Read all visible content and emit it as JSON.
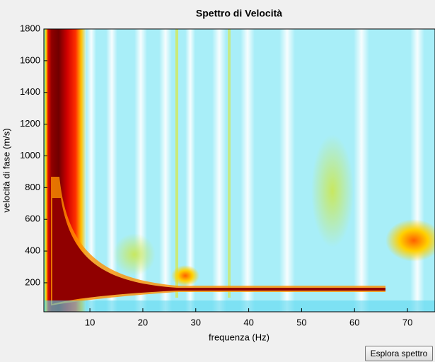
{
  "chart_data": {
    "type": "heatmap",
    "title": "Spettro di Velocità",
    "x_label": "frequenza (Hz)",
    "y_label": "velocità di fase (m/s)",
    "xlim": [
      1.3,
      75.2
    ],
    "xticks": [
      10,
      20,
      30,
      40,
      50,
      60,
      70
    ],
    "ylim": [
      17,
      1800
    ],
    "yticks": [
      200,
      400,
      600,
      800,
      1000,
      1200,
      1400,
      1600,
      1800
    ]
  },
  "button": "Esplora spettro"
}
